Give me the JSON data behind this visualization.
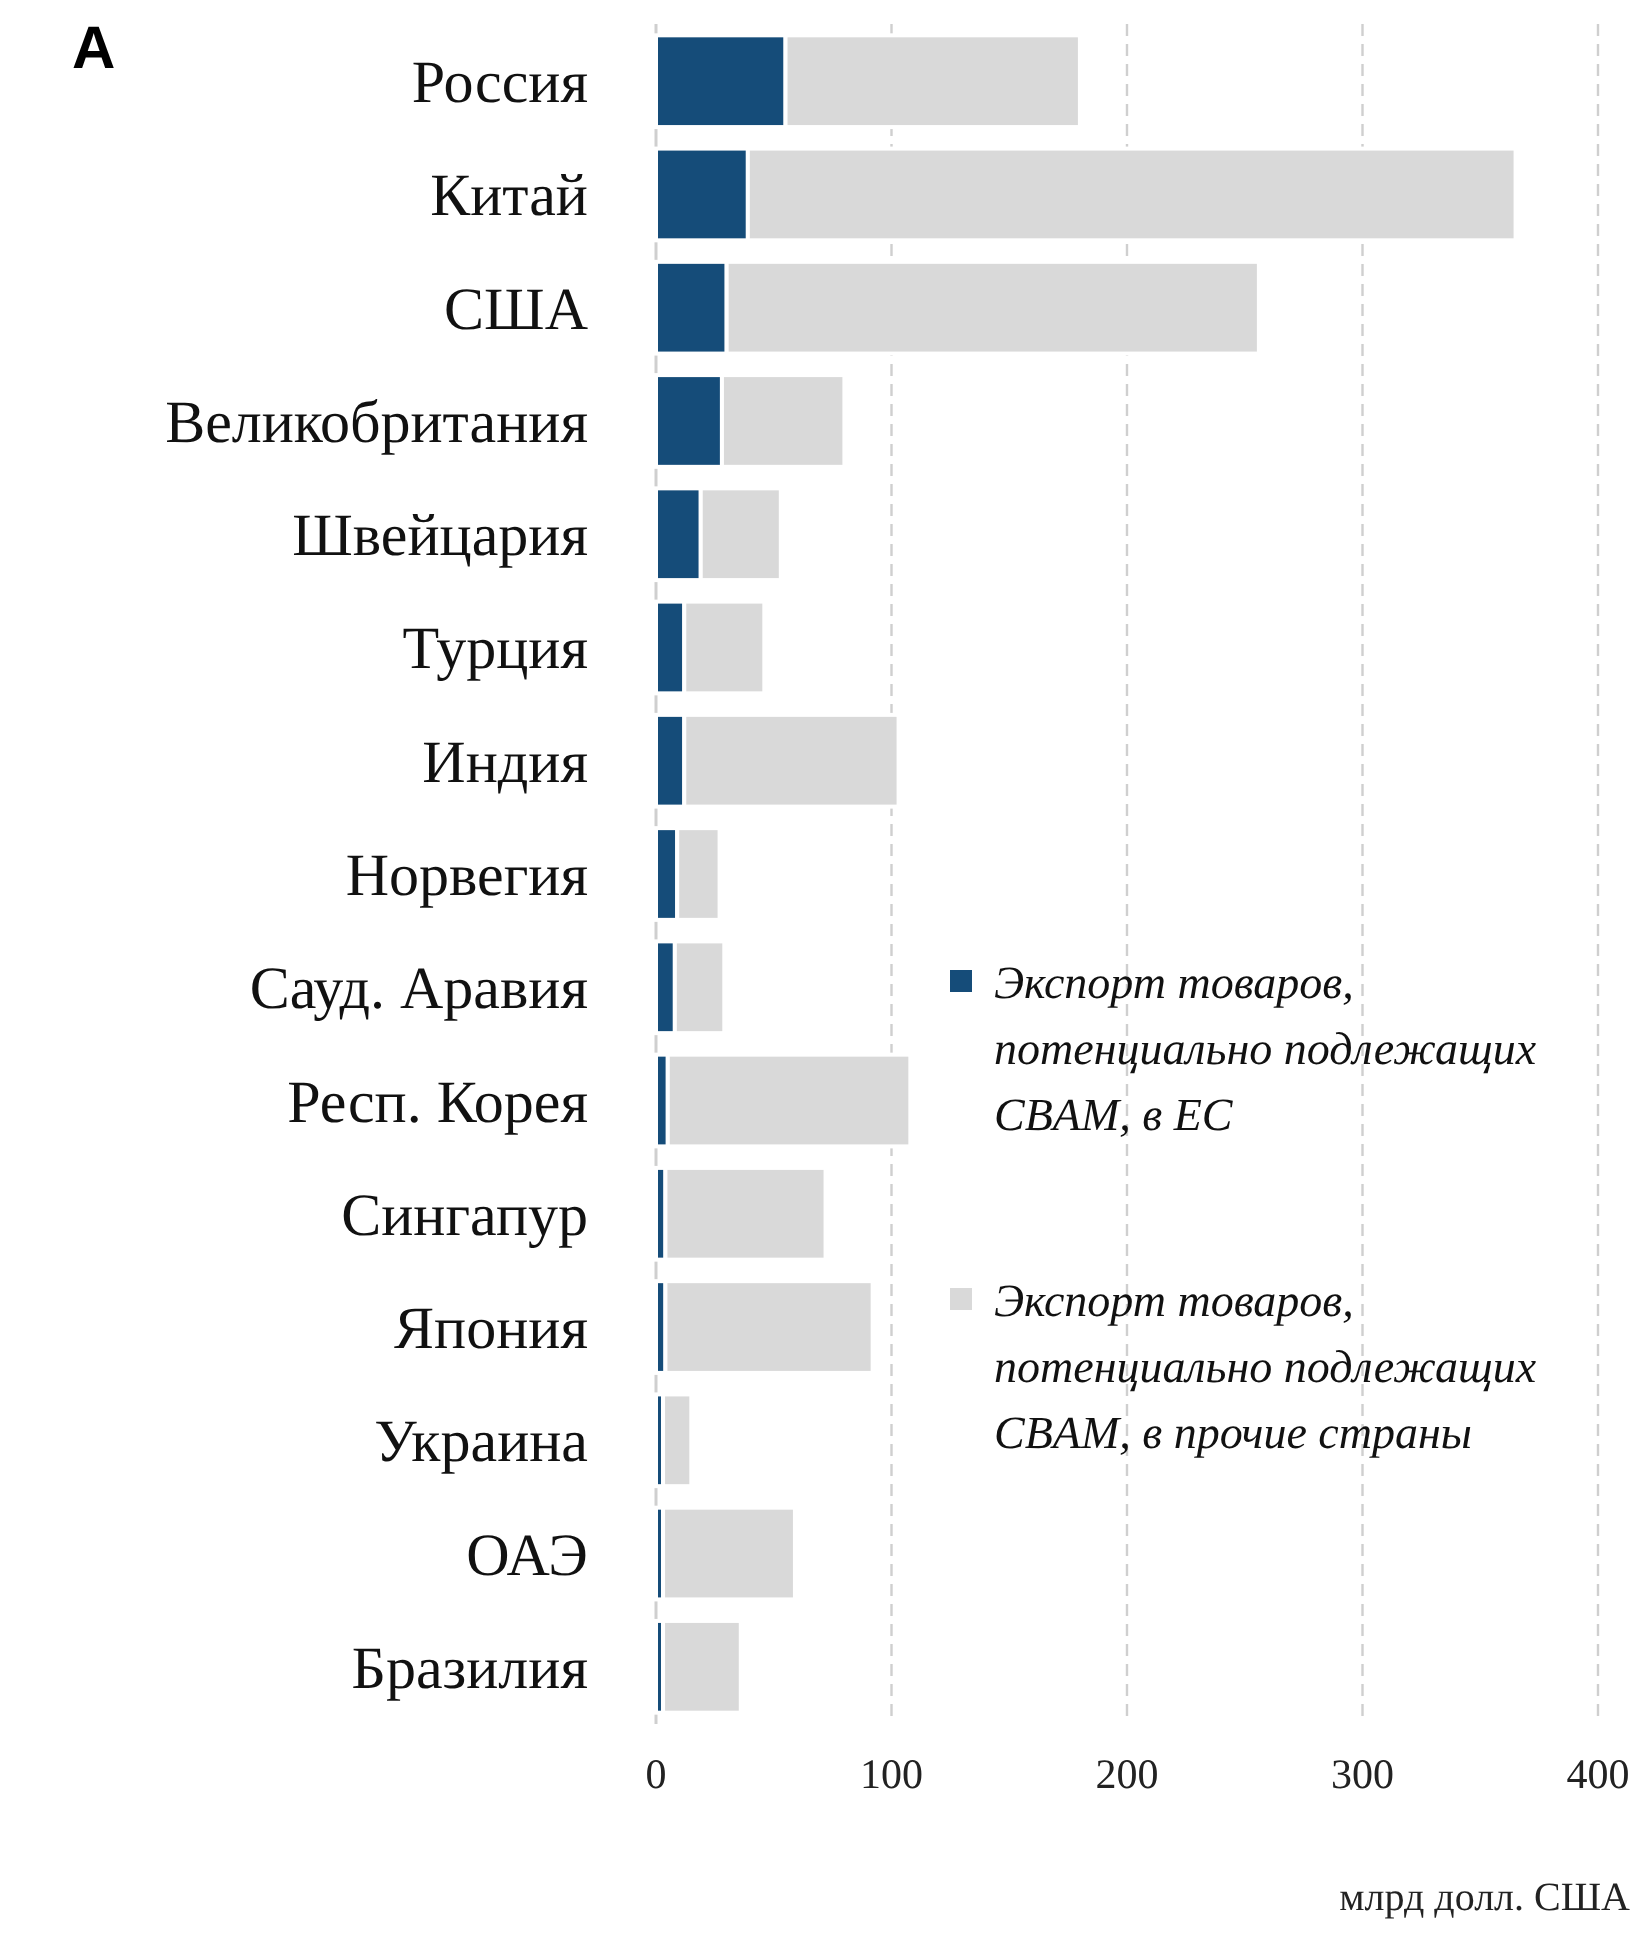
{
  "chart_data": {
    "type": "bar",
    "orientation": "horizontal",
    "stacked": true,
    "title": "A",
    "xlabel": "млрд долл. США",
    "categories": [
      "Россия",
      "Китай",
      "США",
      "Великобритания",
      "Швейцария",
      "Турция",
      "Индия",
      "Норвегия",
      "Сауд. Аравия",
      "Респ. Корея",
      "Сингапур",
      "Япония",
      "Украина",
      "ОАЭ",
      "Бразилия"
    ],
    "series": [
      {
        "name": "Экспорт товаров, потенциально подлежащих CBAM, в ЕС",
        "color": "#154c79",
        "values": [
          55,
          39,
          30,
          28,
          19,
          12,
          12,
          9,
          8,
          5,
          4,
          4,
          3,
          3,
          3
        ]
      },
      {
        "name": "Экспорт товаров, потенциально подлежащих CBAM, в прочие страны",
        "color": "#d9d9d9",
        "values": [
          125,
          326,
          226,
          52,
          34,
          34,
          91,
          18,
          21,
          103,
          68,
          88,
          12,
          56,
          33
        ]
      }
    ],
    "xlim": [
      0,
      400
    ],
    "xticks": [
      0,
      100,
      200,
      300,
      400
    ],
    "grid": "x",
    "legend": "right"
  }
}
